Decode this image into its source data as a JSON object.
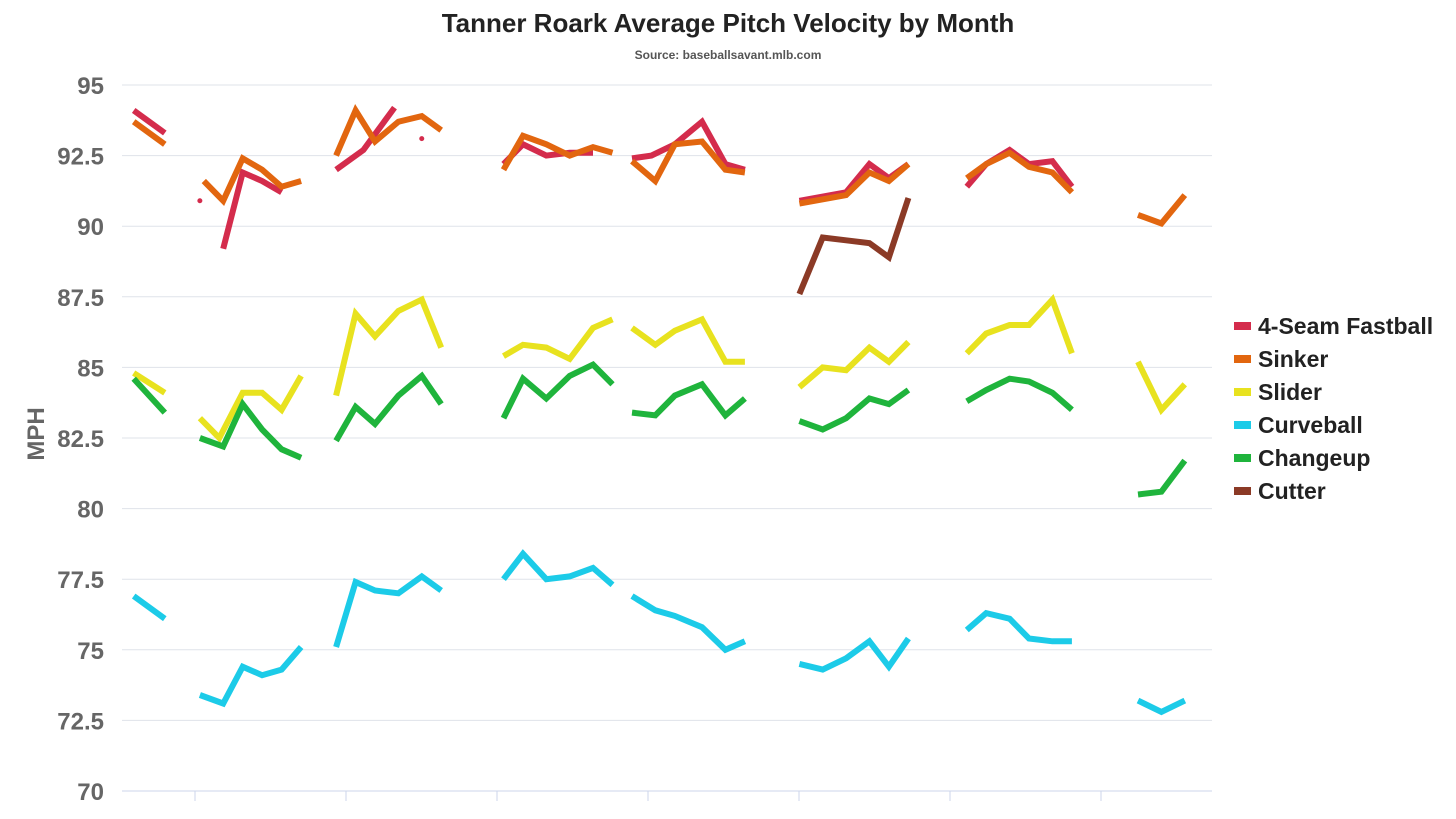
{
  "chart_data": {
    "type": "line",
    "title": "Tanner Roark Average Pitch Velocity by Month",
    "subtitle": "Source: baseballsavant.mlb.com",
    "ylabel": "MPH",
    "xlabel": "",
    "ylim": [
      70,
      95
    ],
    "yticks": [
      95,
      92.5,
      90,
      87.5,
      85,
      82.5,
      80,
      77.5,
      75,
      72.5,
      70
    ],
    "ytick_labels": [
      "95",
      "92.5",
      "90",
      "87.5",
      "85",
      "82.5",
      "80",
      "77.5",
      "75",
      "72.5",
      "70"
    ],
    "grid": true,
    "legend_position": "right",
    "x_groups": 8,
    "series": [
      {
        "name": "4-Seam Fastball",
        "color": "#d42c4c",
        "groups": [
          [
            [
              0.15,
              94.1
            ],
            [
              0.55,
              93.3
            ]
          ],
          [
            [
              1.0,
              90.9
            ]
          ],
          [
            [
              1.3,
              89.2
            ],
            [
              1.55,
              91.9
            ],
            [
              1.8,
              91.6
            ],
            [
              2.05,
              91.2
            ]
          ],
          [
            [
              2.75,
              92.0
            ],
            [
              3.1,
              92.7
            ],
            [
              3.5,
              94.2
            ]
          ],
          [
            [
              3.85,
              93.1
            ]
          ],
          [
            [
              4.9,
              92.2
            ],
            [
              5.15,
              92.9
            ],
            [
              5.45,
              92.5
            ],
            [
              5.75,
              92.6
            ],
            [
              6.05,
              92.6
            ]
          ],
          [
            [
              6.55,
              92.4
            ],
            [
              6.8,
              92.5
            ],
            [
              7.1,
              92.9
            ],
            [
              7.45,
              93.7
            ],
            [
              7.75,
              92.2
            ],
            [
              8.0,
              92.0
            ]
          ],
          [
            [
              8.7,
              90.9
            ],
            [
              9.3,
              91.2
            ],
            [
              9.6,
              92.2
            ],
            [
              9.85,
              91.7
            ],
            [
              10.1,
              92.2
            ]
          ],
          [
            [
              10.85,
              91.4
            ],
            [
              11.1,
              92.2
            ],
            [
              11.4,
              92.7
            ],
            [
              11.65,
              92.2
            ],
            [
              11.95,
              92.3
            ],
            [
              12.2,
              91.4
            ]
          ]
        ]
      },
      {
        "name": "Sinker",
        "color": "#e2660f",
        "groups": [
          [
            [
              0.15,
              93.7
            ],
            [
              0.55,
              92.9
            ]
          ],
          [
            [
              1.05,
              91.6
            ],
            [
              1.3,
              90.9
            ],
            [
              1.55,
              92.4
            ],
            [
              1.8,
              92.0
            ],
            [
              2.05,
              91.4
            ],
            [
              2.3,
              91.6
            ]
          ],
          [
            [
              2.75,
              92.5
            ],
            [
              3.0,
              94.1
            ],
            [
              3.25,
              93.0
            ],
            [
              3.55,
              93.7
            ],
            [
              3.85,
              93.9
            ],
            [
              4.1,
              93.4
            ]
          ],
          [
            [
              4.9,
              92.0
            ],
            [
              5.15,
              93.2
            ],
            [
              5.45,
              92.9
            ],
            [
              5.75,
              92.5
            ],
            [
              6.05,
              92.8
            ],
            [
              6.3,
              92.6
            ]
          ],
          [
            [
              6.55,
              92.3
            ],
            [
              6.85,
              91.6
            ],
            [
              7.1,
              92.9
            ],
            [
              7.45,
              93.0
            ],
            [
              7.75,
              92.0
            ],
            [
              8.0,
              91.9
            ]
          ],
          [
            [
              8.7,
              90.8
            ],
            [
              9.3,
              91.1
            ],
            [
              9.6,
              91.9
            ],
            [
              9.85,
              91.6
            ],
            [
              10.1,
              92.2
            ]
          ],
          [
            [
              10.85,
              91.7
            ],
            [
              11.1,
              92.2
            ],
            [
              11.4,
              92.6
            ],
            [
              11.65,
              92.1
            ],
            [
              11.95,
              91.9
            ],
            [
              12.2,
              91.2
            ]
          ],
          [
            [
              13.05,
              90.4
            ],
            [
              13.35,
              90.1
            ],
            [
              13.65,
              91.1
            ]
          ]
        ]
      },
      {
        "name": "Slider",
        "color": "#e8e21f",
        "groups": [
          [
            [
              0.15,
              84.8
            ],
            [
              0.55,
              84.1
            ]
          ],
          [
            [
              1.0,
              83.2
            ],
            [
              1.25,
              82.5
            ],
            [
              1.55,
              84.1
            ],
            [
              1.8,
              84.1
            ],
            [
              2.05,
              83.5
            ],
            [
              2.3,
              84.7
            ]
          ],
          [
            [
              2.75,
              84.0
            ],
            [
              3.0,
              86.9
            ],
            [
              3.25,
              86.1
            ],
            [
              3.55,
              87.0
            ],
            [
              3.85,
              87.4
            ],
            [
              4.1,
              85.7
            ]
          ],
          [
            [
              4.9,
              85.4
            ],
            [
              5.15,
              85.8
            ],
            [
              5.45,
              85.7
            ],
            [
              5.75,
              85.3
            ],
            [
              6.05,
              86.4
            ],
            [
              6.3,
              86.7
            ]
          ],
          [
            [
              6.55,
              86.4
            ],
            [
              6.85,
              85.8
            ],
            [
              7.1,
              86.3
            ],
            [
              7.45,
              86.7
            ],
            [
              7.75,
              85.2
            ],
            [
              8.0,
              85.2
            ]
          ],
          [
            [
              8.7,
              84.3
            ],
            [
              9.0,
              85.0
            ],
            [
              9.3,
              84.9
            ],
            [
              9.6,
              85.7
            ],
            [
              9.85,
              85.2
            ],
            [
              10.1,
              85.9
            ]
          ],
          [
            [
              10.85,
              85.5
            ],
            [
              11.1,
              86.2
            ],
            [
              11.4,
              86.5
            ],
            [
              11.65,
              86.5
            ],
            [
              11.95,
              87.4
            ],
            [
              12.2,
              85.5
            ]
          ],
          [
            [
              13.05,
              85.2
            ],
            [
              13.35,
              83.5
            ],
            [
              13.65,
              84.4
            ]
          ]
        ]
      },
      {
        "name": "Curveball",
        "color": "#1ccbe8",
        "groups": [
          [
            [
              0.15,
              76.9
            ],
            [
              0.55,
              76.1
            ]
          ],
          [
            [
              1.0,
              73.4
            ],
            [
              1.3,
              73.1
            ],
            [
              1.55,
              74.4
            ],
            [
              1.8,
              74.1
            ],
            [
              2.05,
              74.3
            ],
            [
              2.3,
              75.1
            ]
          ],
          [
            [
              2.75,
              75.1
            ],
            [
              3.0,
              77.4
            ],
            [
              3.25,
              77.1
            ],
            [
              3.55,
              77.0
            ],
            [
              3.85,
              77.6
            ],
            [
              4.1,
              77.1
            ]
          ],
          [
            [
              4.9,
              77.5
            ],
            [
              5.15,
              78.4
            ],
            [
              5.45,
              77.5
            ],
            [
              5.75,
              77.6
            ],
            [
              6.05,
              77.9
            ],
            [
              6.3,
              77.3
            ]
          ],
          [
            [
              6.55,
              76.9
            ],
            [
              6.85,
              76.4
            ],
            [
              7.1,
              76.2
            ],
            [
              7.45,
              75.8
            ],
            [
              7.75,
              75.0
            ],
            [
              8.0,
              75.3
            ]
          ],
          [
            [
              8.7,
              74.5
            ],
            [
              9.0,
              74.3
            ],
            [
              9.3,
              74.7
            ],
            [
              9.6,
              75.3
            ],
            [
              9.85,
              74.4
            ],
            [
              10.1,
              75.4
            ]
          ],
          [
            [
              10.85,
              75.7
            ],
            [
              11.1,
              76.3
            ],
            [
              11.4,
              76.1
            ],
            [
              11.65,
              75.4
            ],
            [
              11.95,
              75.3
            ],
            [
              12.2,
              75.3
            ]
          ],
          [
            [
              13.05,
              73.2
            ],
            [
              13.35,
              72.8
            ],
            [
              13.65,
              73.2
            ]
          ]
        ]
      },
      {
        "name": "Changeup",
        "color": "#1fb43c",
        "groups": [
          [
            [
              0.15,
              84.6
            ],
            [
              0.55,
              83.4
            ]
          ],
          [
            [
              1.0,
              82.5
            ],
            [
              1.3,
              82.2
            ],
            [
              1.55,
              83.7
            ],
            [
              1.8,
              82.8
            ],
            [
              2.05,
              82.1
            ],
            [
              2.3,
              81.8
            ]
          ],
          [
            [
              2.75,
              82.4
            ],
            [
              3.0,
              83.6
            ],
            [
              3.25,
              83.0
            ],
            [
              3.55,
              84.0
            ],
            [
              3.85,
              84.7
            ],
            [
              4.1,
              83.7
            ]
          ],
          [
            [
              4.9,
              83.2
            ],
            [
              5.15,
              84.6
            ],
            [
              5.45,
              83.9
            ],
            [
              5.75,
              84.7
            ],
            [
              6.05,
              85.1
            ],
            [
              6.3,
              84.4
            ]
          ],
          [
            [
              6.55,
              83.4
            ],
            [
              6.85,
              83.3
            ],
            [
              7.1,
              84.0
            ],
            [
              7.45,
              84.4
            ],
            [
              7.75,
              83.3
            ],
            [
              8.0,
              83.9
            ]
          ],
          [
            [
              8.7,
              83.1
            ],
            [
              9.0,
              82.8
            ],
            [
              9.3,
              83.2
            ],
            [
              9.6,
              83.9
            ],
            [
              9.85,
              83.7
            ],
            [
              10.1,
              84.2
            ]
          ],
          [
            [
              10.85,
              83.8
            ],
            [
              11.1,
              84.2
            ],
            [
              11.4,
              84.6
            ],
            [
              11.65,
              84.5
            ],
            [
              11.95,
              84.1
            ],
            [
              12.2,
              83.5
            ]
          ],
          [
            [
              13.05,
              80.5
            ],
            [
              13.35,
              80.6
            ],
            [
              13.65,
              81.7
            ]
          ]
        ]
      },
      {
        "name": "Cutter",
        "color": "#8b3a26",
        "groups": [
          [
            [
              8.7,
              87.6
            ],
            [
              9.0,
              89.6
            ],
            [
              9.3,
              89.5
            ],
            [
              9.6,
              89.4
            ],
            [
              9.85,
              88.9
            ],
            [
              10.1,
              91.0
            ]
          ]
        ]
      }
    ],
    "x_range": [
      0,
      14
    ]
  }
}
